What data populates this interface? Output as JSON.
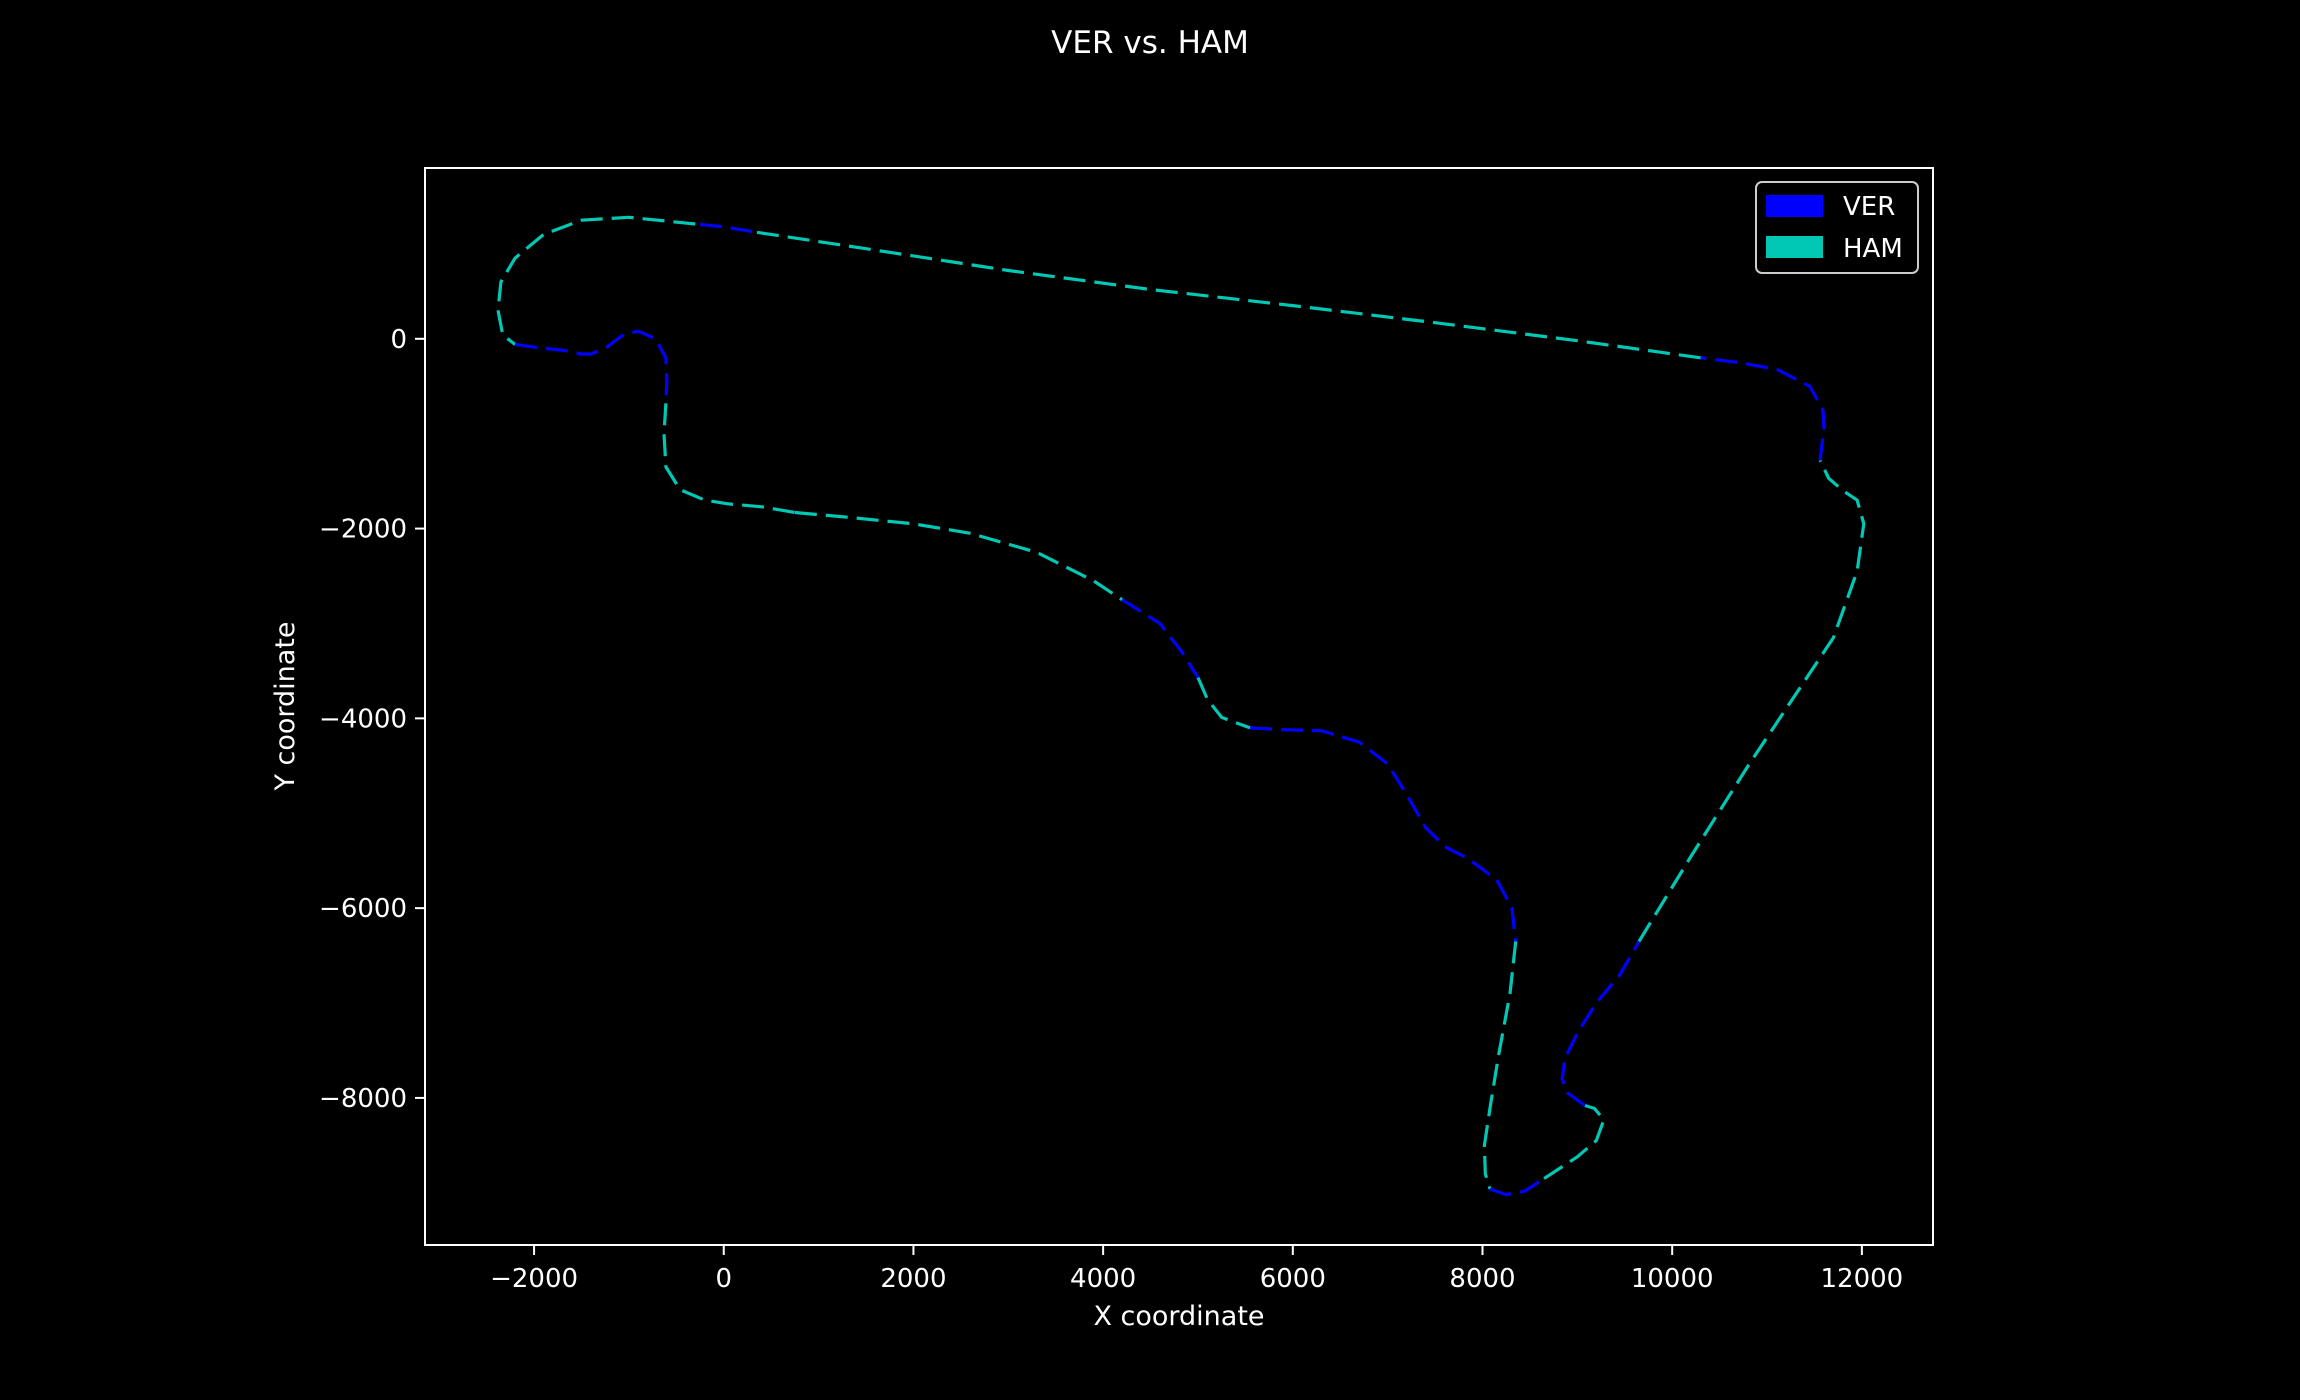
{
  "chart_data": {
    "type": "line",
    "title": "VER vs. HAM",
    "xlabel": "X coordinate",
    "ylabel": "Y coordinate",
    "xlim": [
      -3150,
      12750
    ],
    "ylim": [
      -9550,
      1800
    ],
    "xticks": [
      {
        "value": -2000,
        "label": "−2000"
      },
      {
        "value": 0,
        "label": "0"
      },
      {
        "value": 2000,
        "label": "2000"
      },
      {
        "value": 4000,
        "label": "4000"
      },
      {
        "value": 6000,
        "label": "6000"
      },
      {
        "value": 8000,
        "label": "8000"
      },
      {
        "value": 10000,
        "label": "10000"
      },
      {
        "value": 12000,
        "label": "12000"
      }
    ],
    "yticks": [
      {
        "value": 0,
        "label": "0"
      },
      {
        "value": -2000,
        "label": "−2000"
      },
      {
        "value": -4000,
        "label": "−4000"
      },
      {
        "value": -6000,
        "label": "−6000"
      },
      {
        "value": -8000,
        "label": "−8000"
      }
    ],
    "grid": false,
    "legend_position": "top-right",
    "line_style": "dashed",
    "background": "#000000",
    "foreground": "#ffffff",
    "series": [
      {
        "name": "VER",
        "color": "#0000ff"
      },
      {
        "name": "HAM",
        "color": "#00c8b4"
      }
    ],
    "segments": [
      {
        "driver": "HAM",
        "points": [
          [
            -2380,
            300
          ],
          [
            -2330,
            40
          ],
          [
            -2200,
            -60
          ]
        ]
      },
      {
        "driver": "VER",
        "points": [
          [
            -2200,
            -60
          ],
          [
            -1900,
            -100
          ],
          [
            -1700,
            -120
          ],
          [
            -1500,
            -160
          ],
          [
            -1400,
            -160
          ],
          [
            -1250,
            -100
          ],
          [
            -1050,
            50
          ],
          [
            -900,
            80
          ],
          [
            -720,
            0
          ],
          [
            -610,
            -200
          ],
          [
            -600,
            -450
          ],
          [
            -610,
            -680
          ]
        ]
      },
      {
        "driver": "HAM",
        "points": [
          [
            -610,
            -680
          ],
          [
            -630,
            -1000
          ],
          [
            -610,
            -1350
          ],
          [
            -460,
            -1590
          ],
          [
            -200,
            -1700
          ],
          [
            50,
            -1740
          ],
          [
            400,
            -1770
          ],
          [
            750,
            -1830
          ]
        ]
      },
      {
        "driver": "HAM",
        "points": [
          [
            750,
            -1830
          ],
          [
            1300,
            -1880
          ],
          [
            2000,
            -1950
          ],
          [
            2600,
            -2050
          ],
          [
            3300,
            -2250
          ],
          [
            3900,
            -2550
          ],
          [
            4200,
            -2750
          ]
        ]
      },
      {
        "driver": "VER",
        "points": [
          [
            4200,
            -2750
          ],
          [
            4600,
            -3000
          ],
          [
            4830,
            -3300
          ],
          [
            5000,
            -3570
          ]
        ]
      },
      {
        "driver": "HAM",
        "points": [
          [
            5000,
            -3570
          ],
          [
            5100,
            -3800
          ],
          [
            5250,
            -3990
          ],
          [
            5550,
            -4100
          ]
        ]
      },
      {
        "driver": "VER",
        "points": [
          [
            5550,
            -4100
          ],
          [
            5900,
            -4120
          ],
          [
            6300,
            -4130
          ],
          [
            6700,
            -4250
          ],
          [
            7000,
            -4480
          ],
          [
            7200,
            -4800
          ],
          [
            7400,
            -5150
          ],
          [
            7600,
            -5350
          ],
          [
            7850,
            -5480
          ],
          [
            8150,
            -5700
          ],
          [
            8310,
            -6000
          ],
          [
            8350,
            -6350
          ]
        ]
      },
      {
        "driver": "HAM",
        "points": [
          [
            8350,
            -6350
          ],
          [
            8290,
            -6900
          ],
          [
            8170,
            -7550
          ],
          [
            8080,
            -8100
          ],
          [
            8020,
            -8500
          ],
          [
            8030,
            -8800
          ],
          [
            8080,
            -8960
          ]
        ]
      },
      {
        "driver": "VER",
        "points": [
          [
            8080,
            -8960
          ],
          [
            8250,
            -9020
          ],
          [
            8450,
            -8980
          ],
          [
            8650,
            -8850
          ]
        ]
      },
      {
        "driver": "HAM",
        "points": [
          [
            8650,
            -8850
          ],
          [
            9000,
            -8620
          ],
          [
            9200,
            -8450
          ],
          [
            9280,
            -8230
          ],
          [
            9180,
            -8110
          ],
          [
            9080,
            -8080
          ]
        ]
      },
      {
        "driver": "VER",
        "points": [
          [
            9080,
            -8080
          ],
          [
            8900,
            -7950
          ],
          [
            8840,
            -7800
          ],
          [
            8870,
            -7580
          ],
          [
            9010,
            -7300
          ],
          [
            9200,
            -7000
          ],
          [
            9450,
            -6700
          ],
          [
            9650,
            -6350
          ]
        ]
      },
      {
        "driver": "HAM",
        "points": [
          [
            9650,
            -6350
          ],
          [
            10200,
            -5450
          ],
          [
            10800,
            -4500
          ],
          [
            11300,
            -3750
          ],
          [
            11700,
            -3150
          ],
          [
            11950,
            -2450
          ],
          [
            12020,
            -1950
          ],
          [
            11950,
            -1700
          ],
          [
            11800,
            -1600
          ],
          [
            11650,
            -1470
          ],
          [
            11560,
            -1280
          ]
        ]
      },
      {
        "driver": "VER",
        "points": [
          [
            11560,
            -1280
          ],
          [
            11600,
            -950
          ],
          [
            11590,
            -750
          ],
          [
            11450,
            -500
          ],
          [
            11100,
            -320
          ],
          [
            10700,
            -250
          ],
          [
            10300,
            -200
          ]
        ]
      },
      {
        "driver": "HAM",
        "points": [
          [
            10300,
            -200
          ],
          [
            9000,
            -20
          ],
          [
            7500,
            170
          ],
          [
            6000,
            350
          ],
          [
            4500,
            520
          ],
          [
            3000,
            720
          ],
          [
            1500,
            950
          ],
          [
            300,
            1130
          ]
        ]
      },
      {
        "driver": "VER",
        "points": [
          [
            300,
            1130
          ],
          [
            0,
            1180
          ],
          [
            -300,
            1210
          ]
        ]
      },
      {
        "driver": "HAM",
        "points": [
          [
            -300,
            1210
          ],
          [
            -1000,
            1280
          ],
          [
            -1500,
            1250
          ],
          [
            -1900,
            1100
          ],
          [
            -2200,
            850
          ],
          [
            -2350,
            600
          ],
          [
            -2380,
            300
          ]
        ]
      }
    ]
  }
}
